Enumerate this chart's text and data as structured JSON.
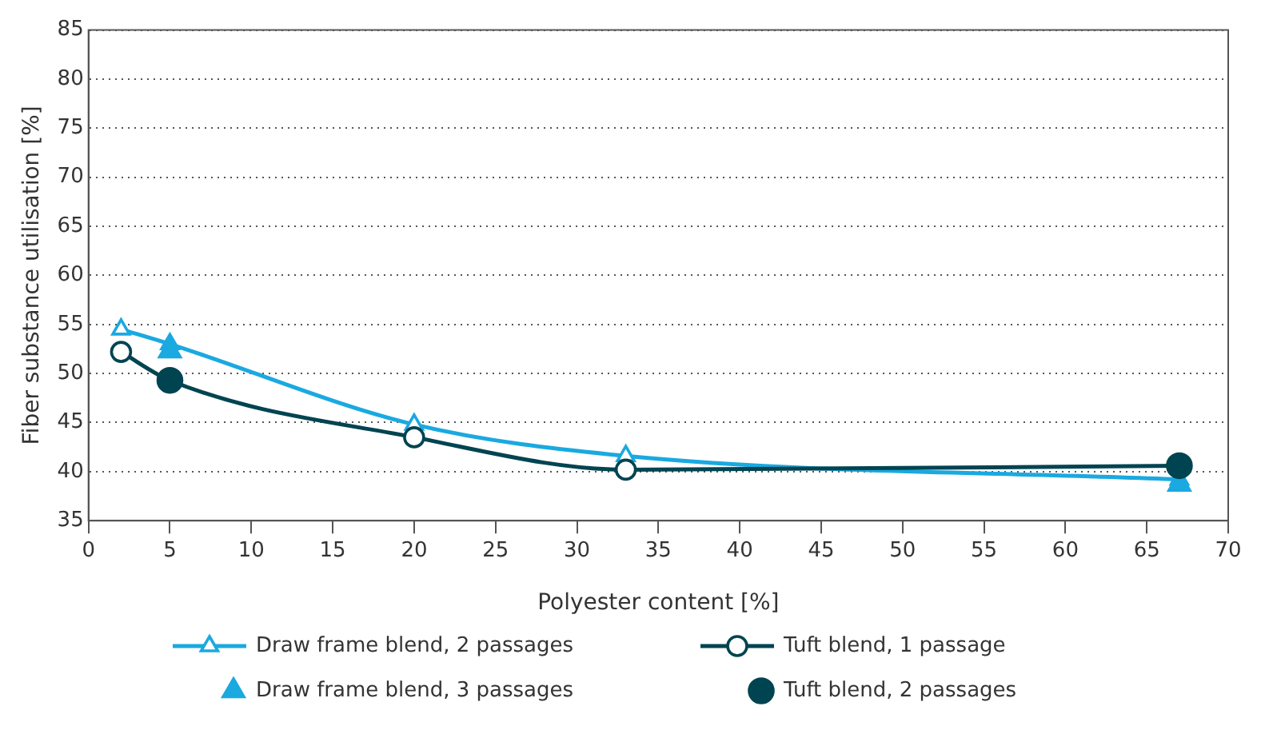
{
  "chart_data": {
    "type": "line",
    "xlabel": "Polyester content [%]",
    "ylabel": "Fiber substance utilisation [%]",
    "xlim": [
      0,
      70
    ],
    "xticks": [
      0,
      5,
      10,
      15,
      20,
      25,
      30,
      35,
      40,
      45,
      50,
      55,
      60,
      65,
      70
    ],
    "ylim": [
      35,
      85
    ],
    "yticks": [
      35,
      40,
      45,
      50,
      55,
      60,
      65,
      70,
      75,
      80,
      85
    ],
    "grid": "y",
    "legend": "bottom",
    "series": [
      {
        "name": "Draw frame blend, 2 passages",
        "type": "line",
        "marker": "triangle",
        "color": "#1aa9e0",
        "x": [
          2,
          5,
          20,
          33,
          67
        ],
        "values": [
          54.5,
          53,
          44.8,
          41.6,
          39.2
        ]
      },
      {
        "name": "Tuft blend, 1 passage",
        "type": "line",
        "marker": "circle",
        "color": "#004451",
        "x": [
          2,
          5,
          20,
          33,
          67
        ],
        "values": [
          52.2,
          49.3,
          43.5,
          40.2,
          40.6
        ]
      },
      {
        "name": "Draw frame blend, 3 passages",
        "type": "scatter",
        "marker": "triangle",
        "color": "#1aa9e0",
        "x": [
          5,
          67
        ],
        "values": [
          52.3,
          38.7
        ]
      },
      {
        "name": "Tuft blend, 2 passages",
        "type": "scatter",
        "marker": "circle",
        "color": "#004451",
        "x": [
          5,
          67
        ],
        "values": [
          49.3,
          40.6
        ]
      }
    ]
  }
}
